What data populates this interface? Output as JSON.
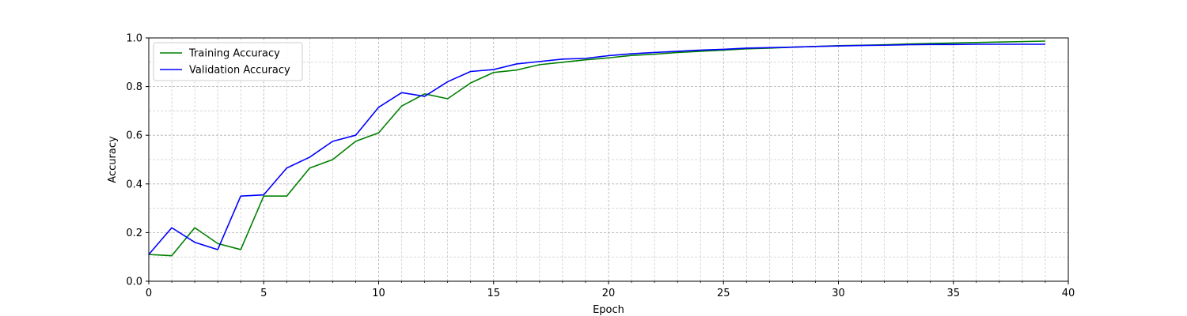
{
  "chart_data": {
    "type": "line",
    "title": "",
    "xlabel": "Epoch",
    "ylabel": "Accuracy",
    "xlim": [
      0,
      40
    ],
    "ylim": [
      0,
      1.0
    ],
    "xticks": [
      "0",
      "5",
      "10",
      "15",
      "20",
      "25",
      "30",
      "35",
      "40"
    ],
    "yticks": [
      "0.0",
      "0.2",
      "0.4",
      "0.6",
      "0.8",
      "1.0"
    ],
    "grid": true,
    "legend_position": "upper-left",
    "x": [
      0,
      1,
      2,
      3,
      4,
      5,
      6,
      7,
      8,
      9,
      10,
      11,
      12,
      13,
      14,
      15,
      16,
      17,
      18,
      19,
      20,
      21,
      22,
      23,
      24,
      25,
      26,
      27,
      28,
      29,
      30,
      31,
      32,
      33,
      34,
      35,
      36,
      37,
      38,
      39
    ],
    "series": [
      {
        "name": "Training Accuracy",
        "color": "#008000",
        "values": [
          0.11,
          0.105,
          0.22,
          0.155,
          0.13,
          0.35,
          0.35,
          0.465,
          0.5,
          0.575,
          0.61,
          0.72,
          0.77,
          0.75,
          0.815,
          0.858,
          0.868,
          0.89,
          0.9,
          0.91,
          0.918,
          0.928,
          0.933,
          0.94,
          0.945,
          0.95,
          0.955,
          0.958,
          0.962,
          0.965,
          0.968,
          0.97,
          0.972,
          0.975,
          0.977,
          0.979,
          0.981,
          0.983,
          0.985,
          0.987
        ]
      },
      {
        "name": "Validation Accuracy",
        "color": "#0000ff",
        "values": [
          0.11,
          0.22,
          0.16,
          0.13,
          0.35,
          0.355,
          0.465,
          0.51,
          0.575,
          0.6,
          0.715,
          0.775,
          0.76,
          0.82,
          0.862,
          0.87,
          0.893,
          0.903,
          0.913,
          0.916,
          0.927,
          0.935,
          0.94,
          0.945,
          0.95,
          0.953,
          0.958,
          0.96,
          0.962,
          0.965,
          0.967,
          0.969,
          0.97,
          0.972,
          0.973,
          0.973,
          0.974,
          0.974,
          0.974,
          0.974
        ]
      }
    ]
  }
}
